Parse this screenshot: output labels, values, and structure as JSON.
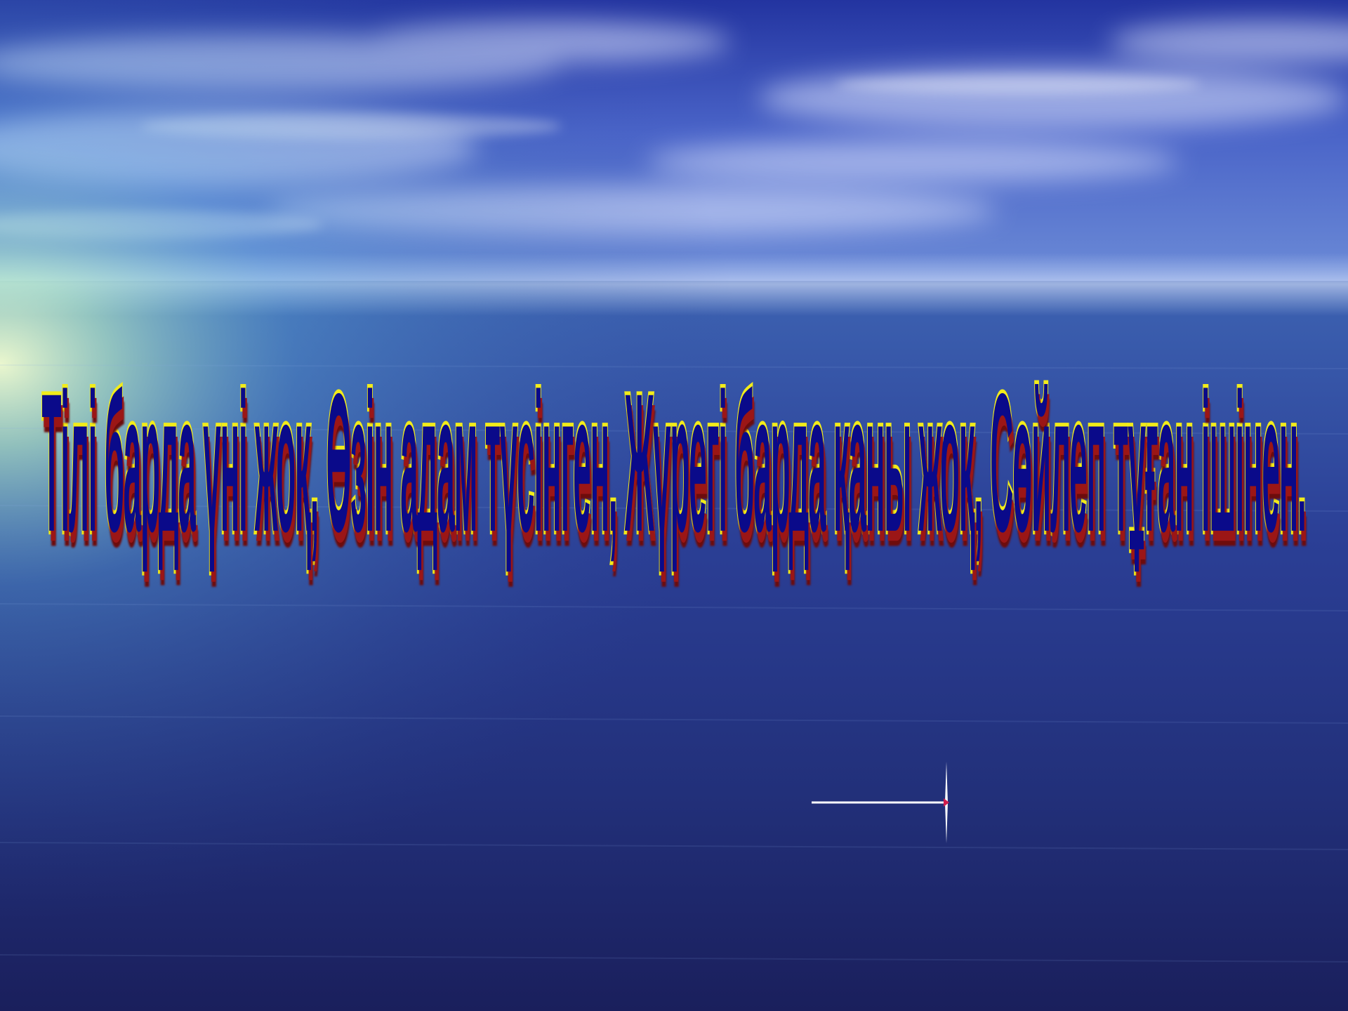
{
  "slide": {
    "text": "Тілі барда үні жоқ, Өзін адам түсінген, Жүрегі барда қаны жоқ, Сөйлеп тұған ішінен.",
    "colors": {
      "text_fill": "#0a0a8a",
      "text_outline": "#f2ec1a",
      "text_shadow": "#9b1616",
      "sky_top": "#2a3aa8",
      "sea_bottom": "#1a1f5e",
      "glow": "#e8f7c0"
    },
    "background": "sky-and-sea-image",
    "arrow_icon": "arrow-right-icon"
  }
}
